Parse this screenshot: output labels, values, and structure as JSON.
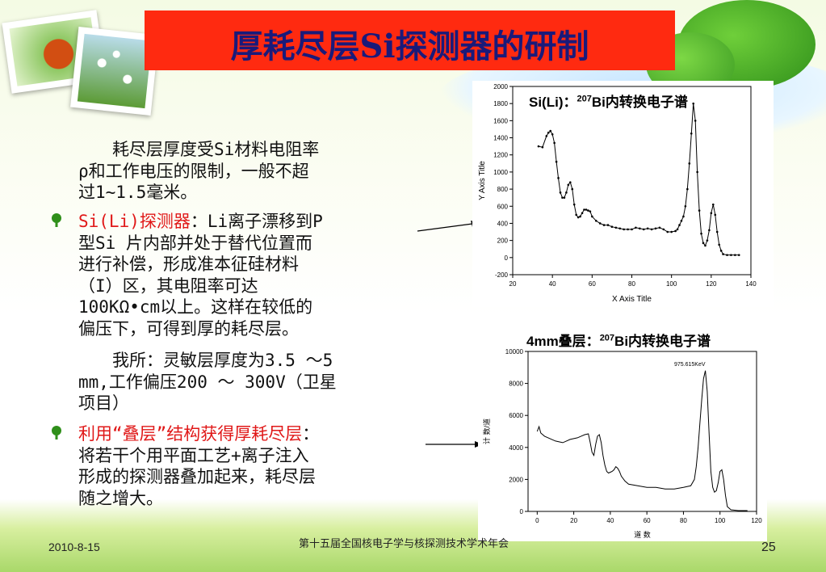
{
  "slide": {
    "title": "厚耗尽层Si探测器的研制",
    "intro": [
      "耗尽层厚度受Si材料电阻率",
      "ρ和工作电压的限制，一般不超",
      "过1~1.5毫米。"
    ],
    "bullet1": {
      "label": "Si(Li)探测器",
      "first_line_rest": "：Li离子漂移到P",
      "lines": [
        "型Si 片内部并处于替代位置而",
        "进行补偿，形成准本征硅材料",
        "（I）区，其电阻率可达",
        "100KΩ•cm以上。这样在较低的",
        "偏压下，可得到厚的耗尽层。"
      ]
    },
    "ours": [
      "我所：灵敏层厚度为3.5 ～5",
      "mm,工作偏压200 ～ 300V（卫星",
      "项目）"
    ],
    "bullet2": {
      "label": "利用“叠层”结构获得厚耗尽层",
      "first_line_rest": "：",
      "lines": [
        "将若干个用平面工艺+离子注入",
        "形成的探测器叠加起来，耗尽层",
        "随之增大。"
      ]
    },
    "chart1_caption": {
      "prefix": "Si(Li)：",
      "sup": "207",
      "suffix": "Bi内转换电子谱"
    },
    "chart2_caption": {
      "prefix": "4mm叠层：",
      "sup": "207",
      "suffix": "Bi内转换电子谱"
    },
    "footer": {
      "date": "2010-8-15",
      "conference": "第十五届全国核电子学与核探测技术学术年会",
      "page": "25"
    }
  },
  "chart_data": [
    {
      "type": "line",
      "title": "",
      "xlabel": "X Axis Title",
      "ylabel": "Y Axis Title",
      "xlim": [
        20,
        140
      ],
      "ylim": [
        -200,
        2000
      ],
      "xticks": [
        "20",
        "40",
        "60",
        "80",
        "100",
        "120",
        "140"
      ],
      "yticks": [
        "-200",
        "0",
        "200",
        "400",
        "600",
        "800",
        "1000",
        "1200",
        "1400",
        "1600",
        "1800",
        "2000"
      ],
      "x": [
        33,
        35,
        37,
        38,
        39,
        40,
        41,
        42,
        43,
        44,
        45,
        46,
        47,
        48,
        49,
        50,
        51,
        52,
        53,
        54,
        55,
        56,
        57,
        58,
        59,
        60,
        62,
        64,
        66,
        68,
        70,
        72,
        74,
        76,
        78,
        80,
        82,
        84,
        86,
        88,
        90,
        92,
        94,
        96,
        98,
        100,
        102,
        103,
        104,
        105,
        106,
        107,
        108,
        109,
        110,
        111,
        112,
        113,
        114,
        115,
        116,
        117,
        118,
        119,
        120,
        121,
        122,
        123,
        124,
        125,
        126,
        128,
        130,
        132,
        134
      ],
      "y": [
        1300,
        1290,
        1420,
        1460,
        1480,
        1440,
        1340,
        1120,
        930,
        760,
        700,
        700,
        760,
        850,
        880,
        800,
        620,
        500,
        470,
        480,
        520,
        560,
        560,
        550,
        540,
        480,
        430,
        400,
        380,
        380,
        360,
        350,
        340,
        330,
        330,
        330,
        350,
        340,
        330,
        340,
        330,
        340,
        350,
        330,
        300,
        300,
        310,
        330,
        380,
        430,
        480,
        600,
        800,
        1100,
        1450,
        1800,
        1600,
        1000,
        550,
        280,
        170,
        140,
        200,
        320,
        520,
        620,
        500,
        300,
        150,
        80,
        40,
        30,
        30,
        30,
        30
      ]
    },
    {
      "type": "line",
      "title": "",
      "xlabel": "道 数",
      "ylabel": "计  数/道",
      "annotation": "975.615KeV",
      "xlim": [
        -5,
        120
      ],
      "ylim": [
        0,
        10000
      ],
      "xticks": [
        "0",
        "20",
        "40",
        "60",
        "80",
        "100",
        "120"
      ],
      "yticks": [
        "0",
        "2000",
        "4000",
        "6000",
        "8000",
        "10000"
      ],
      "x": [
        0,
        1,
        2,
        4,
        6,
        8,
        10,
        12,
        14,
        16,
        18,
        20,
        22,
        24,
        26,
        28,
        29,
        30,
        31,
        32,
        33,
        34,
        35,
        36,
        37,
        38,
        39,
        40,
        41,
        42,
        43,
        44,
        45,
        46,
        48,
        50,
        55,
        60,
        65,
        70,
        75,
        80,
        84,
        86,
        87,
        88,
        89,
        90,
        91,
        92,
        93,
        94,
        95,
        96,
        97,
        98,
        99,
        100,
        101,
        102,
        103,
        104,
        106,
        110,
        115
      ],
      "y": [
        5000,
        5300,
        4900,
        4700,
        4600,
        4500,
        4400,
        4350,
        4300,
        4400,
        4500,
        4550,
        4600,
        4700,
        4800,
        4850,
        4300,
        3700,
        3500,
        4200,
        4700,
        4800,
        4300,
        3500,
        2900,
        2500,
        2400,
        2450,
        2500,
        2600,
        2800,
        2700,
        2500,
        2200,
        1900,
        1700,
        1600,
        1500,
        1500,
        1400,
        1400,
        1500,
        1600,
        2000,
        2800,
        4000,
        5500,
        7000,
        8300,
        8800,
        7500,
        5000,
        2500,
        1500,
        1200,
        1300,
        1800,
        2500,
        2600,
        2000,
        1000,
        300,
        100,
        50,
        50
      ]
    }
  ]
}
